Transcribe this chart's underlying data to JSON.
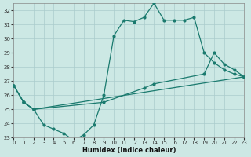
{
  "xlabel": "Humidex (Indice chaleur)",
  "xlim": [
    0,
    23
  ],
  "ylim": [
    23,
    32.5
  ],
  "yticks": [
    23,
    24,
    25,
    26,
    27,
    28,
    29,
    30,
    31,
    32
  ],
  "background_color": "#cce8e4",
  "grid_color": "#aacccc",
  "line_color": "#1a7a6e",
  "line1_x": [
    0,
    1,
    2,
    3,
    4,
    5,
    6,
    7,
    8,
    9,
    10,
    11,
    12,
    13,
    14,
    15,
    16,
    17,
    18,
    19,
    20,
    21,
    22,
    23
  ],
  "line1_y": [
    26.7,
    25.5,
    25.0,
    23.9,
    23.6,
    23.3,
    22.8,
    23.2,
    23.9,
    26.0,
    30.2,
    31.3,
    31.2,
    31.5,
    32.5,
    31.3,
    31.3,
    31.3,
    31.5,
    29.0,
    28.3,
    27.8,
    27.5,
    27.3
  ],
  "line2_x": [
    0,
    1,
    2,
    9,
    13,
    14,
    19,
    20,
    21,
    22,
    23
  ],
  "line2_y": [
    26.7,
    25.5,
    25.0,
    25.5,
    26.5,
    26.8,
    27.5,
    29.0,
    28.2,
    27.8,
    27.3
  ],
  "line3_x": [
    0,
    1,
    2,
    23
  ],
  "line3_y": [
    26.7,
    25.5,
    25.0,
    27.3
  ]
}
